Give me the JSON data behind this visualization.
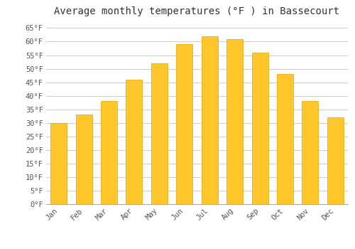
{
  "title": "Average monthly temperatures (°F ) in Bassecourt",
  "months": [
    "Jan",
    "Feb",
    "Mar",
    "Apr",
    "May",
    "Jun",
    "Jul",
    "Aug",
    "Sep",
    "Oct",
    "Nov",
    "Dec"
  ],
  "values": [
    30,
    33,
    38,
    46,
    52,
    59,
    62,
    61,
    56,
    48,
    38,
    32
  ],
  "bar_color_top": "#FFC72C",
  "bar_color_bottom": "#FFB300",
  "bar_edge_color": "#E8A000",
  "background_color": "#FFFFFF",
  "plot_bg_color": "#FFFFFF",
  "ylim": [
    0,
    68
  ],
  "yticks": [
    0,
    5,
    10,
    15,
    20,
    25,
    30,
    35,
    40,
    45,
    50,
    55,
    60,
    65
  ],
  "ytick_labels": [
    "0°F",
    "5°F",
    "10°F",
    "15°F",
    "20°F",
    "25°F",
    "30°F",
    "35°F",
    "40°F",
    "45°F",
    "50°F",
    "55°F",
    "60°F",
    "65°F"
  ],
  "grid_color": "#CCCCCC",
  "title_fontsize": 10,
  "tick_fontsize": 7.5,
  "font_family": "monospace"
}
